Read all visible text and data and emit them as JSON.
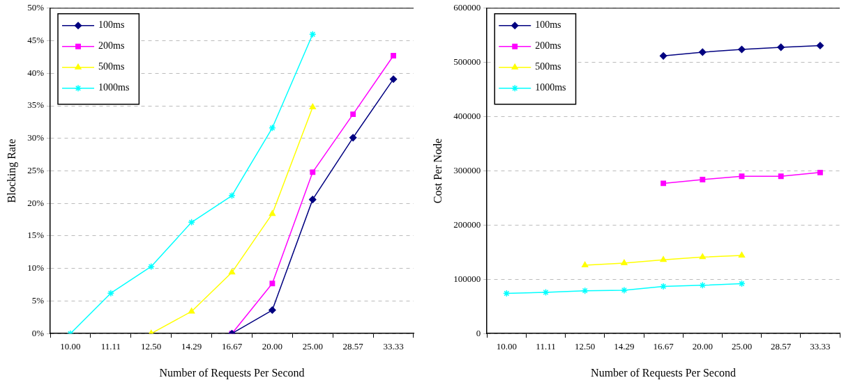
{
  "chart_data": [
    {
      "type": "line",
      "xlabel": "Number of Requests Per Second",
      "ylabel": "Blocking Rate",
      "categories": [
        "10.00",
        "11.11",
        "12.50",
        "14.29",
        "16.67",
        "20.00",
        "25.00",
        "28.57",
        "33.33"
      ],
      "series": [
        {
          "name": "100ms",
          "color": "#000080",
          "marker": "diamond",
          "values": [
            null,
            null,
            null,
            null,
            0,
            3.6,
            20.6,
            30.1,
            39.1
          ]
        },
        {
          "name": "200ms",
          "color": "#ff00ff",
          "marker": "square",
          "values": [
            null,
            null,
            null,
            null,
            0,
            7.7,
            24.8,
            33.7,
            42.7
          ]
        },
        {
          "name": "500ms",
          "color": "#ffff00",
          "marker": "triangle",
          "values": [
            null,
            null,
            0,
            3.4,
            9.4,
            18.4,
            34.8,
            null,
            null
          ]
        },
        {
          "name": "1000ms",
          "color": "#00ffff",
          "marker": "cross",
          "values": [
            0,
            6.2,
            10.3,
            17.1,
            21.2,
            31.6,
            46.0,
            null,
            null
          ]
        }
      ],
      "ylim": [
        0,
        50
      ],
      "yticks": [
        {
          "value": 0,
          "label": "0%"
        },
        {
          "value": 5,
          "label": "5%"
        },
        {
          "value": 10,
          "label": "10%"
        },
        {
          "value": 15,
          "label": "15%"
        },
        {
          "value": 20,
          "label": "20%"
        },
        {
          "value": 25,
          "label": "25%"
        },
        {
          "value": 30,
          "label": "30%"
        },
        {
          "value": 35,
          "label": "35%"
        },
        {
          "value": 40,
          "label": "40%"
        },
        {
          "value": 45,
          "label": "45%"
        },
        {
          "value": 50,
          "label": "50%"
        }
      ],
      "grid": "y",
      "legend": "top left",
      "line_style": "solid"
    },
    {
      "type": "line",
      "xlabel": "Number of Requests Per Second",
      "ylabel": "Cost Per Node",
      "categories": [
        "10.00",
        "11.11",
        "12.50",
        "14.29",
        "16.67",
        "20.00",
        "25.00",
        "28.57",
        "33.33"
      ],
      "series": [
        {
          "name": "100ms",
          "color": "#000080",
          "marker": "diamond",
          "values": [
            null,
            null,
            null,
            null,
            512000,
            519000,
            524000,
            528000,
            531000
          ]
        },
        {
          "name": "200ms",
          "color": "#ff00ff",
          "marker": "square",
          "values": [
            null,
            null,
            null,
            null,
            277000,
            284000,
            290000,
            290000,
            297000
          ]
        },
        {
          "name": "500ms",
          "color": "#ffff00",
          "marker": "triangle",
          "values": [
            null,
            null,
            126000,
            130000,
            136000,
            141000,
            144000,
            null,
            null
          ]
        },
        {
          "name": "1000ms",
          "color": "#00ffff",
          "marker": "cross",
          "values": [
            74000,
            76000,
            79000,
            80000,
            87000,
            89000,
            92000,
            null,
            null
          ]
        }
      ],
      "ylim": [
        0,
        600000
      ],
      "yticks": [
        0,
        100000,
        200000,
        300000,
        400000,
        500000,
        600000
      ],
      "grid": "y",
      "legend": "top left",
      "line_style": "solid"
    }
  ]
}
